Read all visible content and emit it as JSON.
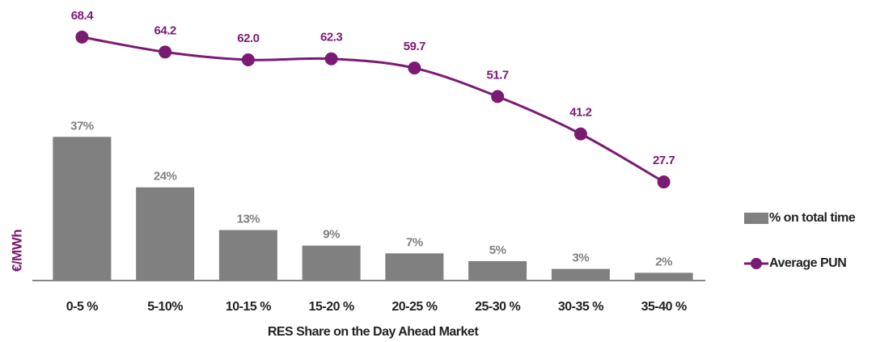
{
  "chart_data": {
    "type": "bar",
    "categories": [
      "0-5 %",
      "5-10%",
      "10-15 %",
      "15-20 %",
      "20-25 %",
      "25-30 %",
      "30-35 %",
      "35-40 %"
    ],
    "x_label": "RES Share on the Day Ahead Market",
    "y_label": "€/MWh",
    "ylim": [
      0,
      66
    ],
    "y2lim": [
      0,
      72
    ],
    "legend": "right",
    "series": [
      {
        "name": "% on total time",
        "type": "bar",
        "color": "#808080",
        "values": [
          37,
          24,
          13,
          9,
          7,
          5,
          3,
          2
        ],
        "value_labels": [
          "37%",
          "24%",
          "13%",
          "9%",
          "7%",
          "5%",
          "3%",
          "2%"
        ]
      },
      {
        "name": "Average PUN",
        "type": "line",
        "axis": "y2",
        "color": "#7b1a73",
        "values": [
          68.4,
          64.2,
          62.0,
          62.3,
          59.7,
          51.7,
          41.2,
          27.7
        ],
        "value_labels": [
          "68.4",
          "64.2",
          "62.0",
          "62.3",
          "59.7",
          "51.7",
          "41.2",
          "27.7"
        ]
      }
    ]
  }
}
